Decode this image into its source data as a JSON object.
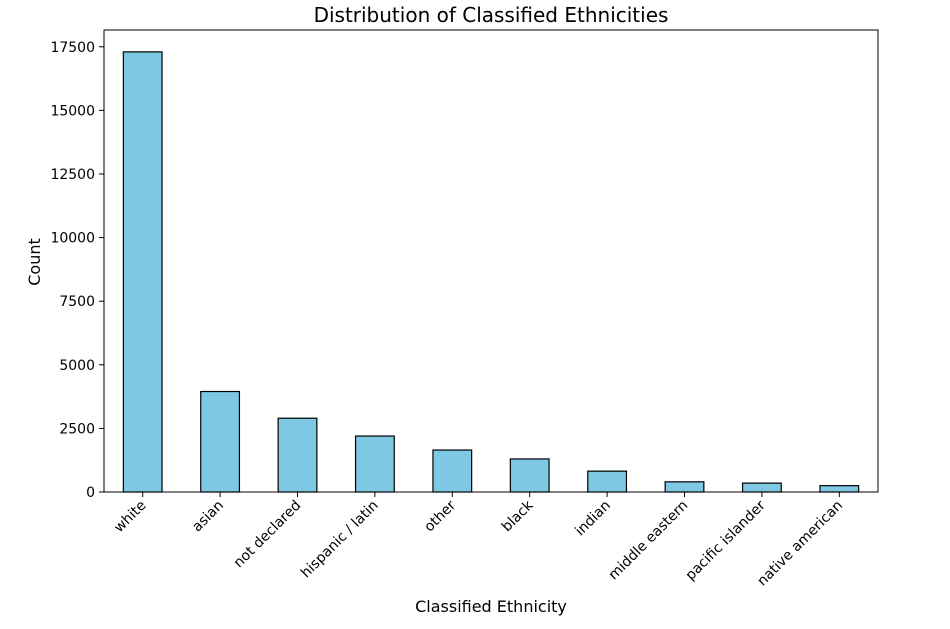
{
  "chart_data": {
    "type": "bar",
    "title": "Distribution of Classified Ethnicities",
    "xlabel": "Classified Ethnicity",
    "ylabel": "Count",
    "categories": [
      "white",
      "asian",
      "not declared",
      "hispanic / latin",
      "other",
      "black",
      "indian",
      "middle eastern",
      "pacific islander",
      "native american"
    ],
    "values": [
      17300,
      3950,
      2900,
      2200,
      1650,
      1300,
      820,
      400,
      350,
      250
    ],
    "yticks": [
      0,
      2500,
      5000,
      7500,
      10000,
      12500,
      15000,
      17500
    ],
    "ylim": [
      0,
      18160
    ],
    "grid": false,
    "bar_color": "#7ec8e3",
    "edge_color": "#000000"
  }
}
